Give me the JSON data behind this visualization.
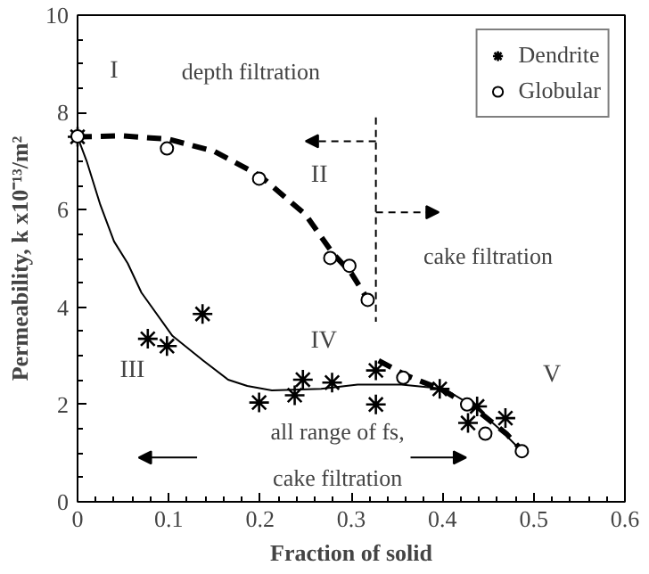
{
  "chart_data": {
    "type": "scatter",
    "xlabel": "Fraction of solid",
    "ylabel": "Permeability, k x10⁻¹³/m²",
    "xlim": [
      0,
      0.6
    ],
    "xticks": [
      0,
      0.1,
      0.2,
      0.3,
      0.4,
      0.5,
      0.6
    ],
    "ylim": [
      0,
      10
    ],
    "yticks": [
      0,
      2,
      4,
      6,
      8,
      10
    ],
    "legend": "top right",
    "grid": false,
    "series": [
      {
        "name": "Dendrite",
        "marker": "cross",
        "color": "#000000",
        "x": [
          0,
          0.077,
          0.098,
          0.137,
          0.199,
          0.238,
          0.247,
          0.279,
          0.327,
          0.327,
          0.397,
          0.428,
          0.438,
          0.469
        ],
        "values": [
          7.5,
          3.35,
          3.2,
          3.86,
          2.04,
          2.19,
          2.51,
          2.45,
          2.7,
          2.0,
          2.32,
          1.62,
          1.96,
          1.72
        ]
      },
      {
        "name": "Globular",
        "marker": "circle",
        "color": "#000000",
        "x": [
          0,
          0.098,
          0.199,
          0.277,
          0.298,
          0.318,
          0.357,
          0.427,
          0.447,
          0.487
        ],
        "values": [
          7.51,
          7.26,
          6.64,
          5.01,
          4.85,
          4.15,
          2.55,
          2.0,
          1.4,
          1.04
        ]
      },
      {
        "type": "line",
        "line_style": "solid",
        "color": "#000000",
        "x": [
          0,
          0.01,
          0.025,
          0.04,
          0.055,
          0.07,
          0.104,
          0.138,
          0.165,
          0.186,
          0.213,
          0.267,
          0.307,
          0.355,
          0.402,
          0.436,
          0.463,
          0.487
        ],
        "values": [
          7.5,
          7.0,
          6.1,
          5.35,
          4.9,
          4.3,
          3.41,
          2.9,
          2.51,
          2.38,
          2.29,
          2.32,
          2.41,
          2.41,
          2.32,
          1.94,
          1.49,
          1.04
        ]
      },
      {
        "type": "line",
        "line_style": "dashed",
        "color": "#000000",
        "x": [
          0,
          0.05,
          0.1,
          0.15,
          0.2,
          0.25,
          0.28,
          0.3,
          0.32,
          null,
          0.33,
          0.36,
          0.4,
          0.44,
          0.47,
          0.49
        ],
        "values": [
          7.5,
          7.52,
          7.45,
          7.2,
          6.7,
          5.9,
          5.1,
          4.7,
          4.1,
          null,
          2.9,
          2.6,
          2.3,
          1.85,
          1.4,
          1.0
        ]
      }
    ],
    "ref_lines": [
      {
        "axis": "x",
        "value": 0.327,
        "line_style": "dashed",
        "color": "#000000"
      }
    ],
    "annotations": [
      "I",
      "depth filtration",
      "II",
      "cake filtration",
      "III",
      "IV",
      "V",
      "all range of fs,",
      "cake filtration"
    ]
  }
}
